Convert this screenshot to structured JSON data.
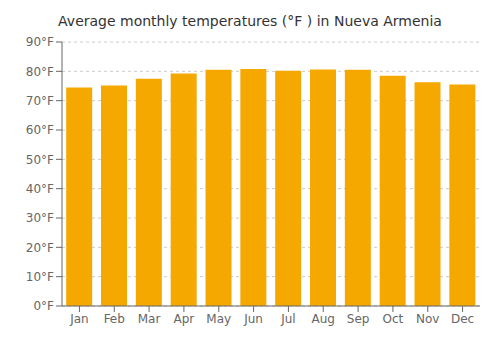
{
  "chart_data": {
    "type": "bar",
    "title": "Average monthly temperatures (°F ) in Nueva Armenia",
    "categories": [
      "Jan",
      "Feb",
      "Mar",
      "Apr",
      "May",
      "Jun",
      "Jul",
      "Aug",
      "Sep",
      "Oct",
      "Nov",
      "Dec"
    ],
    "values": [
      74.5,
      75.2,
      77.5,
      79.3,
      80.5,
      80.8,
      80.2,
      80.6,
      80.5,
      78.5,
      76.3,
      75.5
    ],
    "color": "#F5A800",
    "ylim": [
      0,
      90
    ],
    "yticks": [
      {
        "value": 0,
        "label": "0°F"
      },
      {
        "value": 10,
        "label": "10°F"
      },
      {
        "value": 20,
        "label": "20°F"
      },
      {
        "value": 30,
        "label": "30°F"
      },
      {
        "value": 40,
        "label": "40°F"
      },
      {
        "value": 50,
        "label": "50°F"
      },
      {
        "value": 60,
        "label": "60°F"
      },
      {
        "value": 70,
        "label": "70°F"
      },
      {
        "value": 80,
        "label": "80°F"
      },
      {
        "value": 90,
        "label": "90°F"
      }
    ],
    "grid": true
  }
}
